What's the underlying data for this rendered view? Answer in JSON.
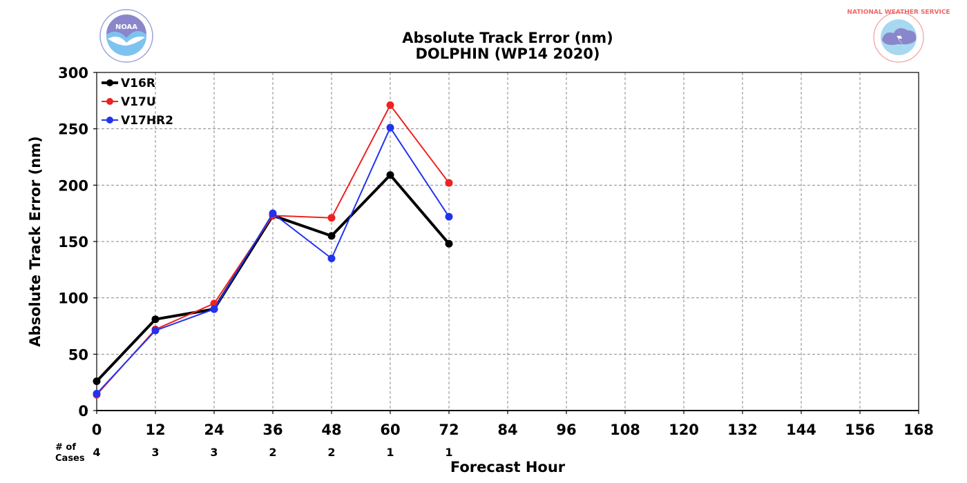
{
  "chart_data": {
    "type": "line",
    "title": "Absolute Track Error (nm)",
    "subtitle": "DOLPHIN (WP14 2020)",
    "xlabel": "Forecast Hour",
    "ylabel": "Absolute Track Error (nm)",
    "xlim": [
      0,
      168
    ],
    "ylim": [
      0,
      300
    ],
    "xticks": [
      0,
      12,
      24,
      36,
      48,
      60,
      72,
      84,
      96,
      108,
      120,
      132,
      144,
      156,
      168
    ],
    "yticks": [
      0,
      50,
      100,
      150,
      200,
      250,
      300
    ],
    "grid": true,
    "legend_position": "top-left",
    "series": [
      {
        "name": "V16R",
        "color": "#000000",
        "x": [
          0,
          12,
          24,
          36,
          48,
          60,
          72
        ],
        "values": [
          26,
          81,
          90,
          173,
          155,
          209,
          148
        ]
      },
      {
        "name": "V17U",
        "color": "#ee2222",
        "x": [
          0,
          12,
          24,
          36,
          48,
          60,
          72
        ],
        "values": [
          14,
          72,
          95,
          173,
          171,
          271,
          202
        ]
      },
      {
        "name": "V17HR2",
        "color": "#2233ee",
        "x": [
          0,
          12,
          24,
          36,
          48,
          60,
          72
        ],
        "values": [
          15,
          71,
          90,
          175,
          135,
          251,
          172
        ]
      }
    ],
    "cases": {
      "label_line1": "# of",
      "label_line2": "Cases",
      "x": [
        0,
        12,
        24,
        36,
        48,
        60,
        72
      ],
      "values": [
        "4",
        "3",
        "3",
        "2",
        "2",
        "1",
        "1"
      ]
    }
  },
  "logos": {
    "left": {
      "name": "NOAA",
      "text": "NOAA"
    },
    "right": {
      "name": "National Weather Service",
      "text": "NATIONAL WEATHER SERVICE"
    }
  }
}
